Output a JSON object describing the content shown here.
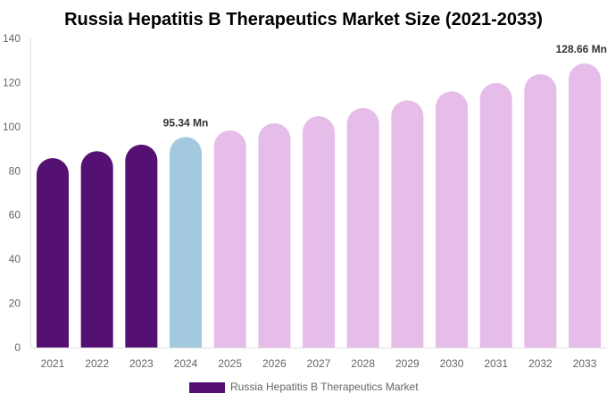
{
  "chart_data": {
    "type": "bar",
    "title": "Russia Hepatitis B Therapeutics Market Size (2021-2033)",
    "xlabel": "",
    "ylabel": "",
    "ylim": [
      0,
      140
    ],
    "yticks": [
      0,
      20,
      40,
      60,
      80,
      100,
      120,
      140
    ],
    "grid": false,
    "legend_position": "bottom",
    "categories": [
      "2021",
      "2022",
      "2023",
      "2024",
      "2025",
      "2026",
      "2027",
      "2028",
      "2029",
      "2030",
      "2031",
      "2032",
      "2033"
    ],
    "series": [
      {
        "name": "Russia Hepatitis B Therapeutics Market",
        "values": [
          85.8,
          88.9,
          91.9,
          95.34,
          98.3,
          101.6,
          104.8,
          108.5,
          112.0,
          116.0,
          119.8,
          123.8,
          128.66
        ]
      }
    ],
    "bar_colors": [
      "#541173",
      "#541173",
      "#541173",
      "#a3c9df",
      "#e6bde9",
      "#e6bde9",
      "#e6bde9",
      "#e6bde9",
      "#e6bde9",
      "#e6bde9",
      "#e6bde9",
      "#e6bde9",
      "#e6bde9"
    ],
    "legend_color": "#541173",
    "data_labels": [
      {
        "category": "2024",
        "text": "95.34 Mn"
      },
      {
        "category": "2033",
        "text": "128.66 Mn"
      }
    ]
  }
}
